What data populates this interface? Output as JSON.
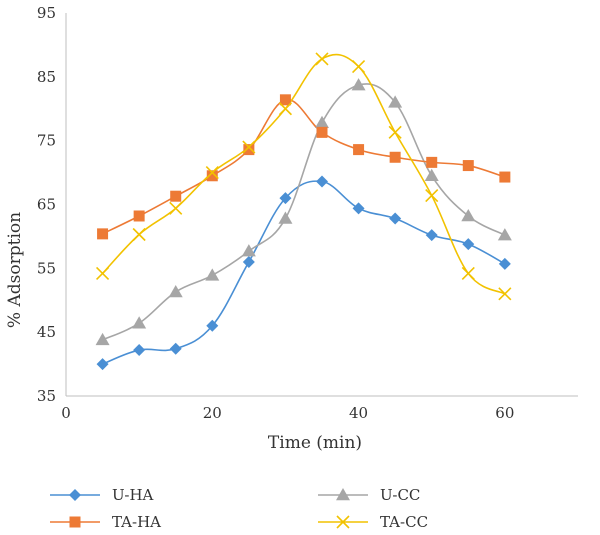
{
  "chart_data": {
    "type": "line",
    "title": "",
    "xlabel": "Time (min)",
    "ylabel": "% Adsorption",
    "xlim": [
      0,
      70
    ],
    "ylim": [
      35,
      95
    ],
    "xticks": [
      0,
      20,
      40,
      60
    ],
    "yticks": [
      35,
      45,
      55,
      65,
      75,
      85,
      95
    ],
    "grid": false,
    "legend_position": "bottom",
    "x": [
      5,
      10,
      15,
      20,
      25,
      30,
      35,
      40,
      45,
      50,
      55,
      60
    ],
    "series": [
      {
        "name": "U-HA",
        "marker": "diamond",
        "color": "#4a8fd4",
        "values": [
          40.0,
          42.2,
          42.4,
          46.0,
          56.0,
          66.0,
          68.6,
          64.4,
          62.8,
          60.2,
          58.8,
          55.7
        ]
      },
      {
        "name": "U-CC",
        "marker": "triangle",
        "color": "#a6a6a6",
        "values": [
          43.8,
          46.4,
          51.3,
          53.9,
          57.7,
          62.8,
          77.8,
          83.7,
          81.0,
          69.5,
          63.2,
          60.2
        ]
      },
      {
        "name": "TA-HA",
        "marker": "square",
        "color": "#ed7a35",
        "values": [
          60.4,
          63.2,
          66.3,
          69.5,
          73.6,
          81.4,
          76.3,
          73.6,
          72.4,
          71.6,
          71.1,
          69.3
        ]
      },
      {
        "name": "TA-CC",
        "marker": "x",
        "color": "#f2c200",
        "values": [
          54.2,
          60.3,
          64.4,
          70.0,
          74.0,
          80.0,
          87.8,
          86.6,
          76.3,
          66.4,
          54.2,
          51.0
        ]
      }
    ]
  }
}
